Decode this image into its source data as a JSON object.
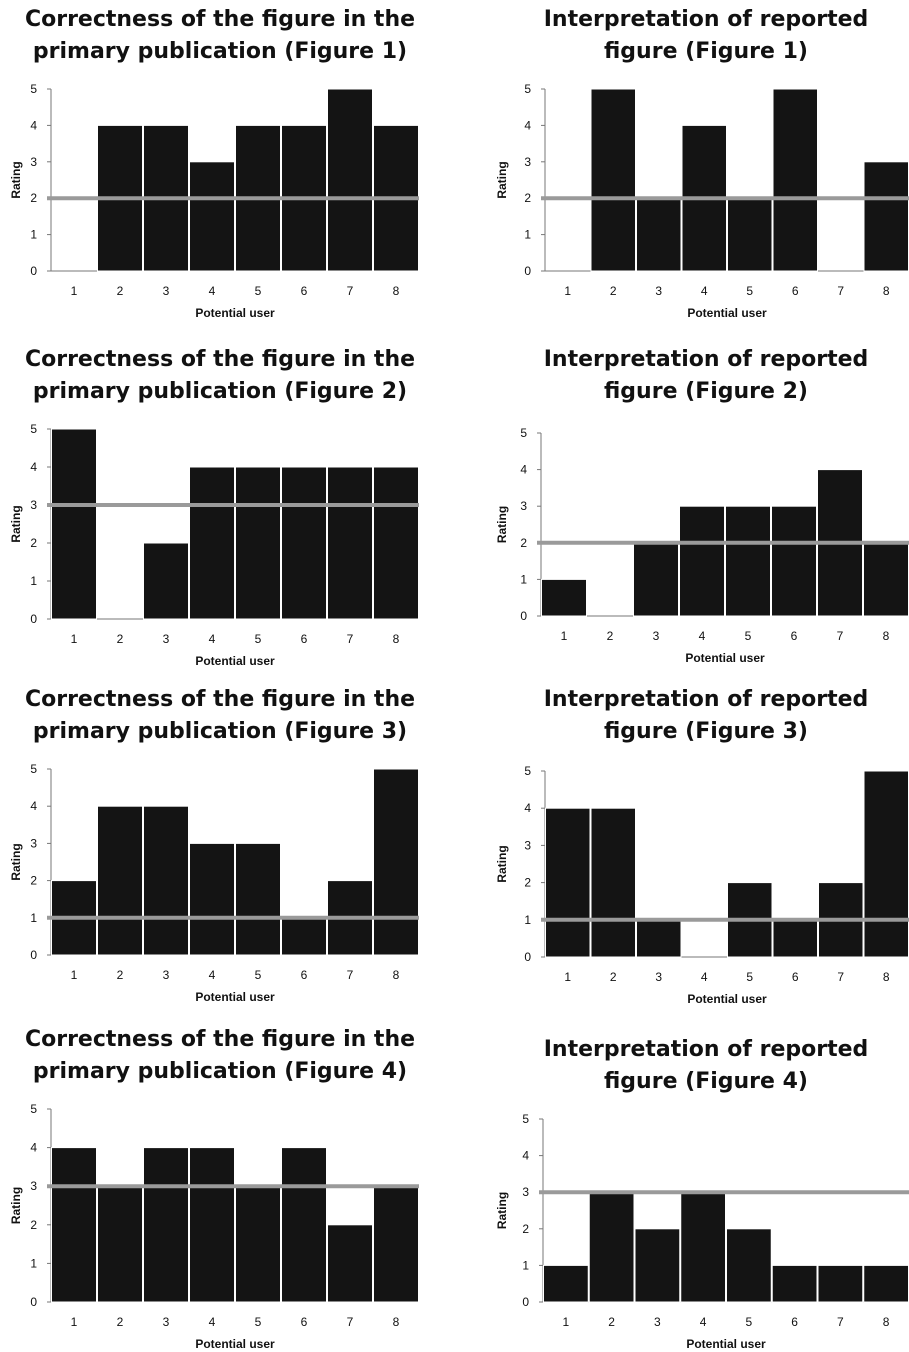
{
  "chart_data": [
    {
      "type": "bar",
      "title_lines": [
        "Correctness of the figure in the",
        "primary publication (Figure 1)"
      ],
      "xlabel": "Potential user",
      "ylabel": "Rating",
      "categories": [
        "1",
        "2",
        "3",
        "4",
        "5",
        "6",
        "7",
        "8"
      ],
      "values": [
        0,
        4,
        4,
        3,
        4,
        4,
        5,
        4
      ],
      "reference_line": 2,
      "ylim": [
        0,
        5
      ],
      "yticks": [
        "0",
        "1",
        "2",
        "3",
        "4",
        "5"
      ],
      "bar_color": "#141414",
      "line_color": "#9a9a9a"
    },
    {
      "type": "bar",
      "title_lines": [
        "Interpretation of reported",
        "figure (Figure 1)"
      ],
      "xlabel": "Potential user",
      "ylabel": "Rating",
      "categories": [
        "1",
        "2",
        "3",
        "4",
        "5",
        "6",
        "7",
        "8"
      ],
      "values": [
        0,
        5,
        2,
        4,
        2,
        5,
        0,
        3
      ],
      "reference_line": 2,
      "ylim": [
        0,
        5
      ],
      "yticks": [
        "0",
        "1",
        "2",
        "3",
        "4",
        "5"
      ],
      "bar_color": "#141414",
      "line_color": "#9a9a9a"
    },
    {
      "type": "bar",
      "title_lines": [
        "Correctness of the figure in the",
        "primary publication  (Figure 2)"
      ],
      "xlabel": "Potential user",
      "ylabel": "Rating",
      "categories": [
        "1",
        "2",
        "3",
        "4",
        "5",
        "6",
        "7",
        "8"
      ],
      "values": [
        5,
        0,
        2,
        4,
        4,
        4,
        4,
        4
      ],
      "reference_line": 3,
      "ylim": [
        0,
        5
      ],
      "yticks": [
        "0",
        "1",
        "2",
        "3",
        "4",
        "5"
      ],
      "bar_color": "#141414",
      "line_color": "#9a9a9a"
    },
    {
      "type": "bar",
      "title_lines": [
        "Interpretation of reported",
        "figure  (Figure 2)"
      ],
      "xlabel": "Potential user",
      "ylabel": "Rating",
      "categories": [
        "1",
        "2",
        "3",
        "4",
        "5",
        "6",
        "7",
        "8"
      ],
      "values": [
        1,
        0,
        2,
        3,
        3,
        3,
        4,
        2
      ],
      "reference_line": 2,
      "ylim": [
        0,
        5
      ],
      "yticks": [
        "0",
        "1",
        "2",
        "3",
        "4",
        "5"
      ],
      "bar_color": "#141414",
      "line_color": "#9a9a9a"
    },
    {
      "type": "bar",
      "title_lines": [
        "Correctness of the figure in the",
        "primary publication  (Figure 3)"
      ],
      "xlabel": "Potential user",
      "ylabel": "Rating",
      "categories": [
        "1",
        "2",
        "3",
        "4",
        "5",
        "6",
        "7",
        "8"
      ],
      "values": [
        2,
        4,
        4,
        3,
        3,
        1,
        2,
        5
      ],
      "reference_line": 1,
      "ylim": [
        0,
        5
      ],
      "yticks": [
        "0",
        "1",
        "2",
        "3",
        "4",
        "5"
      ],
      "bar_color": "#141414",
      "line_color": "#9a9a9a"
    },
    {
      "type": "bar",
      "title_lines": [
        "Interpretation of reported",
        "figure (Figure 3)"
      ],
      "xlabel": "Potential user",
      "ylabel": "Rating",
      "categories": [
        "1",
        "2",
        "3",
        "4",
        "5",
        "6",
        "7",
        "8"
      ],
      "values": [
        4,
        4,
        1,
        0,
        2,
        1,
        2,
        5
      ],
      "reference_line": 1,
      "ylim": [
        0,
        5
      ],
      "yticks": [
        "0",
        "1",
        "2",
        "3",
        "4",
        "5"
      ],
      "bar_color": "#141414",
      "line_color": "#9a9a9a"
    },
    {
      "type": "bar",
      "title_lines": [
        "Correctness of the figure in the",
        "primary publication  (Figure 4)"
      ],
      "xlabel": "Potential user",
      "ylabel": "Rating",
      "categories": [
        "1",
        "2",
        "3",
        "4",
        "5",
        "6",
        "7",
        "8"
      ],
      "values": [
        4,
        3,
        4,
        4,
        3,
        4,
        2,
        3
      ],
      "reference_line": 3,
      "ylim": [
        0,
        5
      ],
      "yticks": [
        "0",
        "1",
        "2",
        "3",
        "4",
        "5"
      ],
      "bar_color": "#141414",
      "line_color": "#9a9a9a"
    },
    {
      "type": "bar",
      "title_lines": [
        "Interpretation of reported",
        "figure  (Figure 4)"
      ],
      "xlabel": "Potential user",
      "ylabel": "Rating",
      "categories": [
        "1",
        "2",
        "3",
        "4",
        "5",
        "6",
        "7",
        "8"
      ],
      "values": [
        1,
        3,
        2,
        3,
        2,
        1,
        1,
        1
      ],
      "reference_line": 3,
      "ylim": [
        0,
        5
      ],
      "yticks": [
        "0",
        "1",
        "2",
        "3",
        "4",
        "5"
      ],
      "bar_color": "#141414",
      "line_color": "#9a9a9a"
    }
  ]
}
